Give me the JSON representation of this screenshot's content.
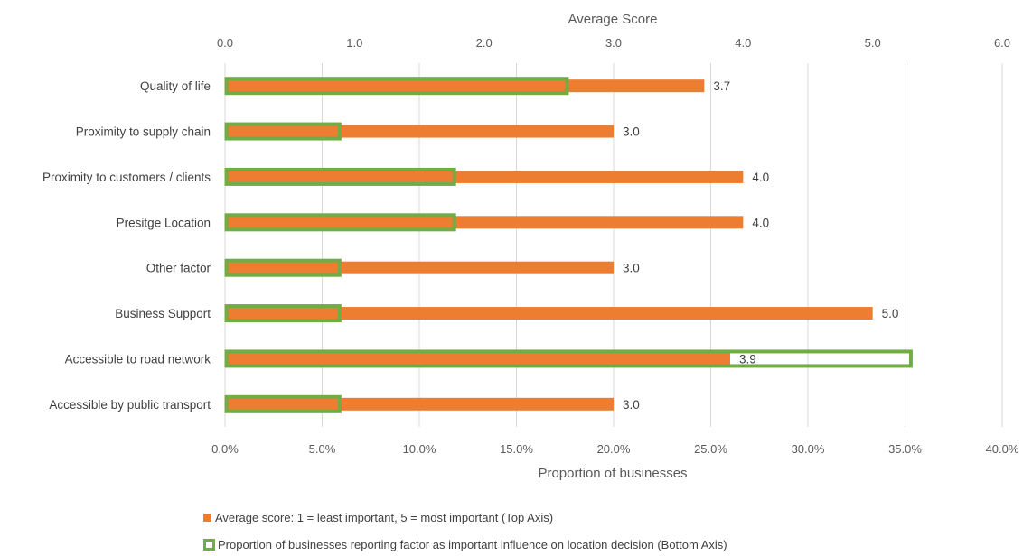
{
  "chart_data": {
    "type": "bar",
    "orientation": "horizontal",
    "categories": [
      "Quality of life",
      "Proximity to supply chain",
      "Proximity to customers / clients",
      "Presitge Location",
      "Other factor",
      "Business Support",
      "Accessible to road network",
      "Accessible by public transport"
    ],
    "series": [
      {
        "name": "Average score: 1 = least important, 5 = most important (Top Axis)",
        "axis": "top",
        "color": "#ED7D31",
        "values": [
          3.7,
          3.0,
          4.0,
          4.0,
          3.0,
          5.0,
          3.9,
          3.0
        ],
        "data_labels": [
          "3.7",
          "3.0",
          "4.0",
          "4.0",
          "3.0",
          "5.0",
          "3.9",
          "3.0"
        ]
      },
      {
        "name": "Proportion of businesses reporting factor as important influence on location decision (Bottom Axis)",
        "axis": "bottom",
        "color": "#70AD47",
        "fill": "none",
        "values": [
          17.6,
          5.9,
          11.8,
          11.8,
          5.9,
          5.9,
          35.3,
          5.9
        ]
      }
    ],
    "top_axis": {
      "title": "Average Score",
      "range": [
        0,
        6
      ],
      "ticks": [
        "0.0",
        "1.0",
        "2.0",
        "3.0",
        "4.0",
        "5.0",
        "6.0"
      ]
    },
    "bottom_axis": {
      "title": "Proportion of businesses",
      "range": [
        0,
        40
      ],
      "ticks": [
        "0.0%",
        "5.0%",
        "10.0%",
        "15.0%",
        "20.0%",
        "25.0%",
        "30.0%",
        "35.0%",
        "40.0%"
      ]
    },
    "grid": true,
    "legend_placement": "bottom"
  }
}
